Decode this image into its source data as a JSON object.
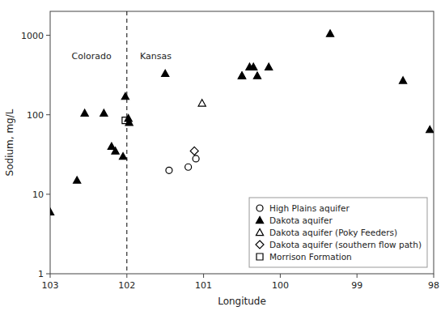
{
  "chart_data": {
    "type": "scatter",
    "xlabel": "Longitude",
    "ylabel": "Sodium, mg/L",
    "log": "y",
    "grid": false,
    "legend": "lower right",
    "xlim": [
      103,
      98
    ],
    "ylim": [
      1,
      2000
    ],
    "xticks": [
      103,
      102,
      101,
      100,
      99,
      98
    ],
    "yticks": [
      1,
      10,
      100,
      1000
    ],
    "vline_x": 102,
    "annotations": [
      {
        "text": "Colorado",
        "x": 102.18,
        "y": 550,
        "align": "right"
      },
      {
        "text": "Kansas",
        "x": 101.85,
        "y": 550,
        "align": "left"
      }
    ],
    "series": [
      {
        "name": "High Plains aquifer",
        "color": "#000000",
        "marker": "circle-open",
        "x": [
          101.45,
          101.2,
          101.1
        ],
        "values": [
          20,
          22,
          28
        ]
      },
      {
        "name": "Dakota aquifer",
        "color": "#000000",
        "marker": "triangle",
        "x": [
          103.0,
          102.65,
          102.55,
          102.3,
          102.2,
          102.15,
          102.05,
          102.02,
          101.98,
          101.97,
          101.5,
          100.5,
          100.35,
          100.3,
          100.15,
          99.35,
          100.5,
          100.4,
          98.4,
          98.05
        ],
        "values": [
          6,
          15,
          105,
          105,
          40,
          35,
          30,
          170,
          90,
          80,
          330,
          310,
          400,
          310,
          400,
          1050,
          310,
          400,
          270,
          65
        ]
      },
      {
        "name": "Dakota aquifer (Poky Feeders)",
        "color": "#000000",
        "marker": "triangle-open",
        "x": [
          101.02
        ],
        "values": [
          140
        ]
      },
      {
        "name": "Dakota aquifer (southern flow path)",
        "color": "#000000",
        "marker": "diamond-open",
        "x": [
          101.12
        ],
        "values": [
          35
        ]
      },
      {
        "name": "Morrison Formation",
        "color": "#000000",
        "marker": "square-open",
        "x": [
          102.02
        ],
        "values": [
          85
        ]
      }
    ]
  }
}
